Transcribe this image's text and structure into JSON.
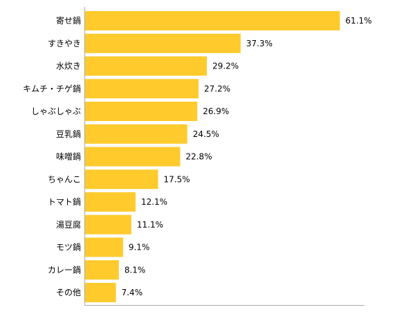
{
  "chart_data": {
    "type": "bar",
    "orientation": "horizontal",
    "categories": [
      "寄せ鍋",
      "すきやき",
      "水炊き",
      "キムチ・チゲ鍋",
      "しゃぶしゃぶ",
      "豆乳鍋",
      "味噌鍋",
      "ちゃんこ",
      "トマト鍋",
      "湯豆腐",
      "モツ鍋",
      "カレー鍋",
      "その他"
    ],
    "values": [
      61.1,
      37.3,
      29.2,
      27.2,
      26.9,
      24.5,
      22.8,
      17.5,
      12.1,
      11.1,
      9.1,
      8.1,
      7.4
    ],
    "value_labels": [
      "61.1%",
      "37.3%",
      "29.2%",
      "27.2%",
      "26.9%",
      "24.5%",
      "22.8%",
      "17.5%",
      "12.1%",
      "11.1%",
      "9.1%",
      "8.1%",
      "7.4%"
    ],
    "unit": "%",
    "xlim": [
      0,
      100
    ],
    "grid": false,
    "legend": "none",
    "colors": {
      "bar": "#FFCA2C",
      "axis": "#AAAAAA",
      "text": "#000000"
    }
  }
}
